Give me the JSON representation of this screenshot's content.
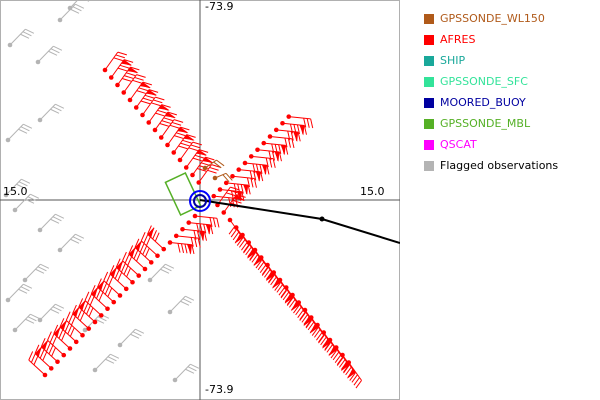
{
  "axes": {
    "top_label": "-73.9",
    "bottom_label": "-73.9",
    "left_label": "15.0",
    "right_label": "15.0"
  },
  "legend": [
    {
      "label": "GPSSONDE_WL150",
      "color": "#b05a1a"
    },
    {
      "label": "AFRES",
      "color": "#ff0000"
    },
    {
      "label": "SHIP",
      "color": "#1aa89a"
    },
    {
      "label": "GPSSONDE_SFC",
      "color": "#33e39a"
    },
    {
      "label": "MOORED_BUOY",
      "color": "#0000a0"
    },
    {
      "label": "GPSSONDE_MBL",
      "color": "#55b026"
    },
    {
      "label": "QSCAT",
      "color": "#ff00ff"
    },
    {
      "label": "Flagged observations",
      "color": "#b4b4b4"
    }
  ],
  "colors": {
    "frame": "#b0b0b0",
    "axis": "#555555",
    "afres": "#ff0000",
    "flagged": "#b4b4b4",
    "buoy": "#0000ff",
    "track": "#000000",
    "sonde": "#b05a1a",
    "mbl": "#55b026"
  }
}
